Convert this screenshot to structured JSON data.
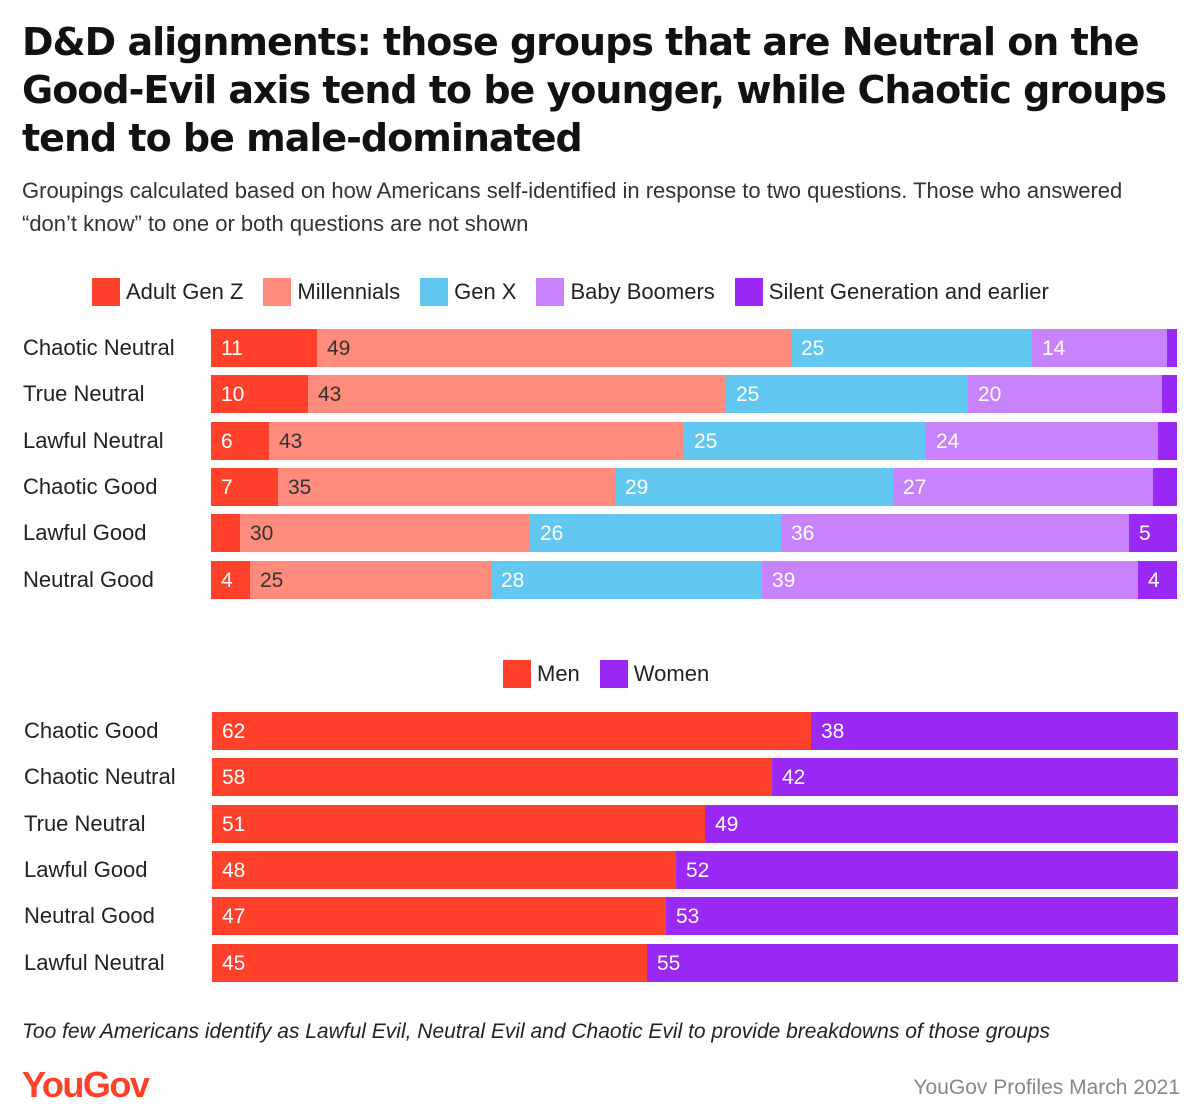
{
  "title": "D&D alignments: those groups that are Neutral on the Good-Evil axis tend to be younger, while Chaotic groups tend to be male-dominated",
  "subtitle": "Groupings calculated based on how Americans self-identified in response to two questions. Those who answered “don’t know” to one or both questions are not shown",
  "footnote": "Too few Americans identify as Lawful Evil, Neutral Evil and Chaotic Evil to provide breakdowns of those groups",
  "logo": "YouGov",
  "source": "YouGov Profiles March 2021",
  "chart_data": [
    {
      "type": "bar",
      "stacked": true,
      "orientation": "horizontal",
      "categories": [
        "Chaotic Neutral",
        "True Neutral",
        "Lawful Neutral",
        "Chaotic Good",
        "Lawful Good",
        "Neutral Good"
      ],
      "series": [
        {
          "name": "Adult Gen Z",
          "color": "#ff412c",
          "values": [
            11,
            10,
            6,
            7,
            3,
            4
          ],
          "labels": [
            "11",
            "10",
            "6",
            "7",
            "",
            "4"
          ]
        },
        {
          "name": "Millennials",
          "color": "#fe8b7c",
          "values": [
            49,
            43,
            43,
            35,
            30,
            25
          ],
          "labels": [
            "49",
            "43",
            "43",
            "35",
            "30",
            "25"
          ]
        },
        {
          "name": "Gen X",
          "color": "#63c8f1",
          "values": [
            25,
            25,
            25,
            29,
            26,
            28
          ],
          "labels": [
            "25",
            "25",
            "25",
            "29",
            "26",
            "28"
          ]
        },
        {
          "name": "Baby Boomers",
          "color": "#c882fb",
          "values": [
            14,
            20,
            24,
            27,
            36,
            39
          ],
          "labels": [
            "14",
            "20",
            "24",
            "27",
            "36",
            "39"
          ]
        },
        {
          "name": "Silent Generation and earlier",
          "color": "#9a29f6",
          "values": [
            1,
            1.5,
            2,
            2.5,
            5,
            4
          ],
          "labels": [
            "",
            "",
            "",
            "",
            "5",
            "4"
          ]
        }
      ],
      "legend_position": "top"
    },
    {
      "type": "bar",
      "stacked": true,
      "orientation": "horizontal",
      "categories": [
        "Chaotic Good",
        "Chaotic Neutral",
        "True Neutral",
        "Lawful Good",
        "Neutral Good",
        "Lawful Neutral"
      ],
      "series": [
        {
          "name": "Men",
          "color": "#ff412c",
          "values": [
            62,
            58,
            51,
            48,
            47,
            45
          ],
          "labels": [
            "62",
            "58",
            "51",
            "48",
            "47",
            "45"
          ]
        },
        {
          "name": "Women",
          "color": "#9a29f6",
          "values": [
            38,
            42,
            49,
            52,
            53,
            55
          ],
          "labels": [
            "38",
            "42",
            "49",
            "52",
            "53",
            "55"
          ]
        }
      ],
      "legend_position": "top"
    }
  ]
}
